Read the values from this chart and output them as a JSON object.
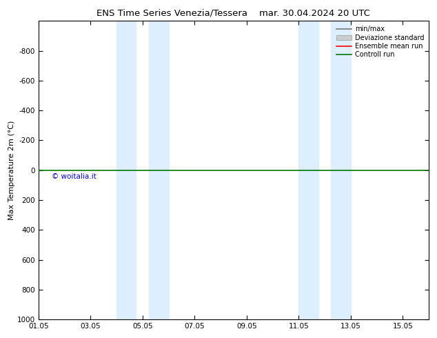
{
  "title_left": "ENS Time Series Venezia/Tessera",
  "title_right": "mar. 30.04.2024 20 UTC",
  "ylabel": "Max Temperature 2m (°C)",
  "ylim": [
    -1000,
    1000
  ],
  "yticks": [
    -800,
    -600,
    -400,
    -200,
    0,
    200,
    400,
    600,
    800,
    1000
  ],
  "xtick_labels": [
    "01.05",
    "03.05",
    "05.05",
    "07.05",
    "09.05",
    "11.05",
    "13.05",
    "15.05"
  ],
  "xtick_positions": [
    0,
    2,
    4,
    6,
    8,
    10,
    12,
    14
  ],
  "xlim": [
    0,
    15
  ],
  "shaded_regions": [
    [
      3.0,
      3.75
    ],
    [
      4.25,
      5.0
    ],
    [
      10.0,
      10.75
    ],
    [
      11.25,
      12.0
    ]
  ],
  "shaded_color": "#ddeeff",
  "green_line_y": 0,
  "control_run_color": "#007700",
  "ensemble_mean_color": "#ff0000",
  "minmax_color": "#777777",
  "stddev_color": "#cccccc",
  "watermark": "© woitalia.it",
  "watermark_color": "#0000cc",
  "background_color": "#ffffff",
  "plot_bg_color": "#ffffff",
  "legend_labels": [
    "min/max",
    "Deviazione standard",
    "Ensemble mean run",
    "Controll run"
  ],
  "title_fontsize": 9.5,
  "label_fontsize": 8,
  "tick_fontsize": 7.5
}
